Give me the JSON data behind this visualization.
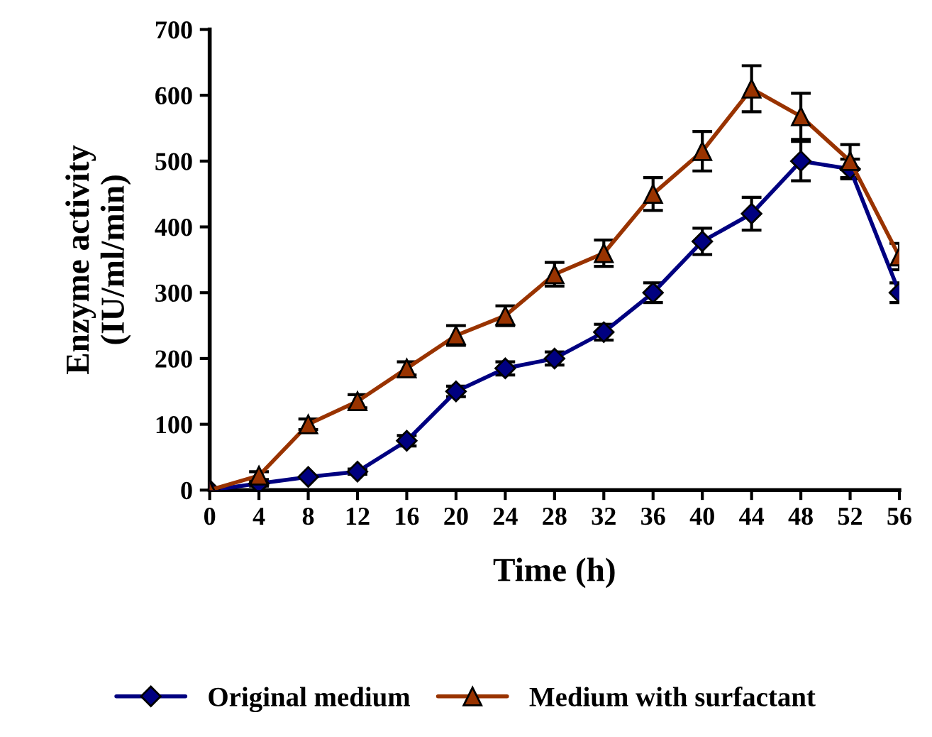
{
  "chart_data": {
    "type": "line",
    "xlabel": "Time (h)",
    "ylabel": "Enzyme activity\n(IU/ml/min)",
    "x": [
      0,
      4,
      8,
      12,
      16,
      20,
      24,
      28,
      32,
      36,
      40,
      44,
      48,
      52,
      56
    ],
    "xlim": [
      0,
      56
    ],
    "xticks": [
      0,
      4,
      8,
      12,
      16,
      20,
      24,
      28,
      32,
      36,
      40,
      44,
      48,
      52,
      56
    ],
    "ylim": [
      0,
      700
    ],
    "yticks": [
      0,
      100,
      200,
      300,
      400,
      500,
      600,
      700
    ],
    "grid": false,
    "legend": "bottom",
    "series": [
      {
        "name": "Original medium",
        "color": "#000080",
        "marker": "diamond",
        "values": [
          0,
          10,
          20,
          28,
          75,
          150,
          185,
          200,
          240,
          300,
          378,
          420,
          500,
          488,
          300
        ],
        "errors": [
          null,
          4,
          null,
          4,
          8,
          8,
          10,
          10,
          12,
          15,
          20,
          25,
          30,
          15,
          15
        ]
      },
      {
        "name": "Medium with surfactant",
        "color": "#993300",
        "marker": "triangle",
        "values": [
          0,
          22,
          100,
          135,
          185,
          235,
          265,
          328,
          360,
          450,
          515,
          610,
          568,
          500,
          355
        ],
        "errors": [
          4,
          6,
          8,
          10,
          10,
          15,
          15,
          18,
          20,
          25,
          30,
          35,
          35,
          25,
          20
        ]
      }
    ]
  }
}
